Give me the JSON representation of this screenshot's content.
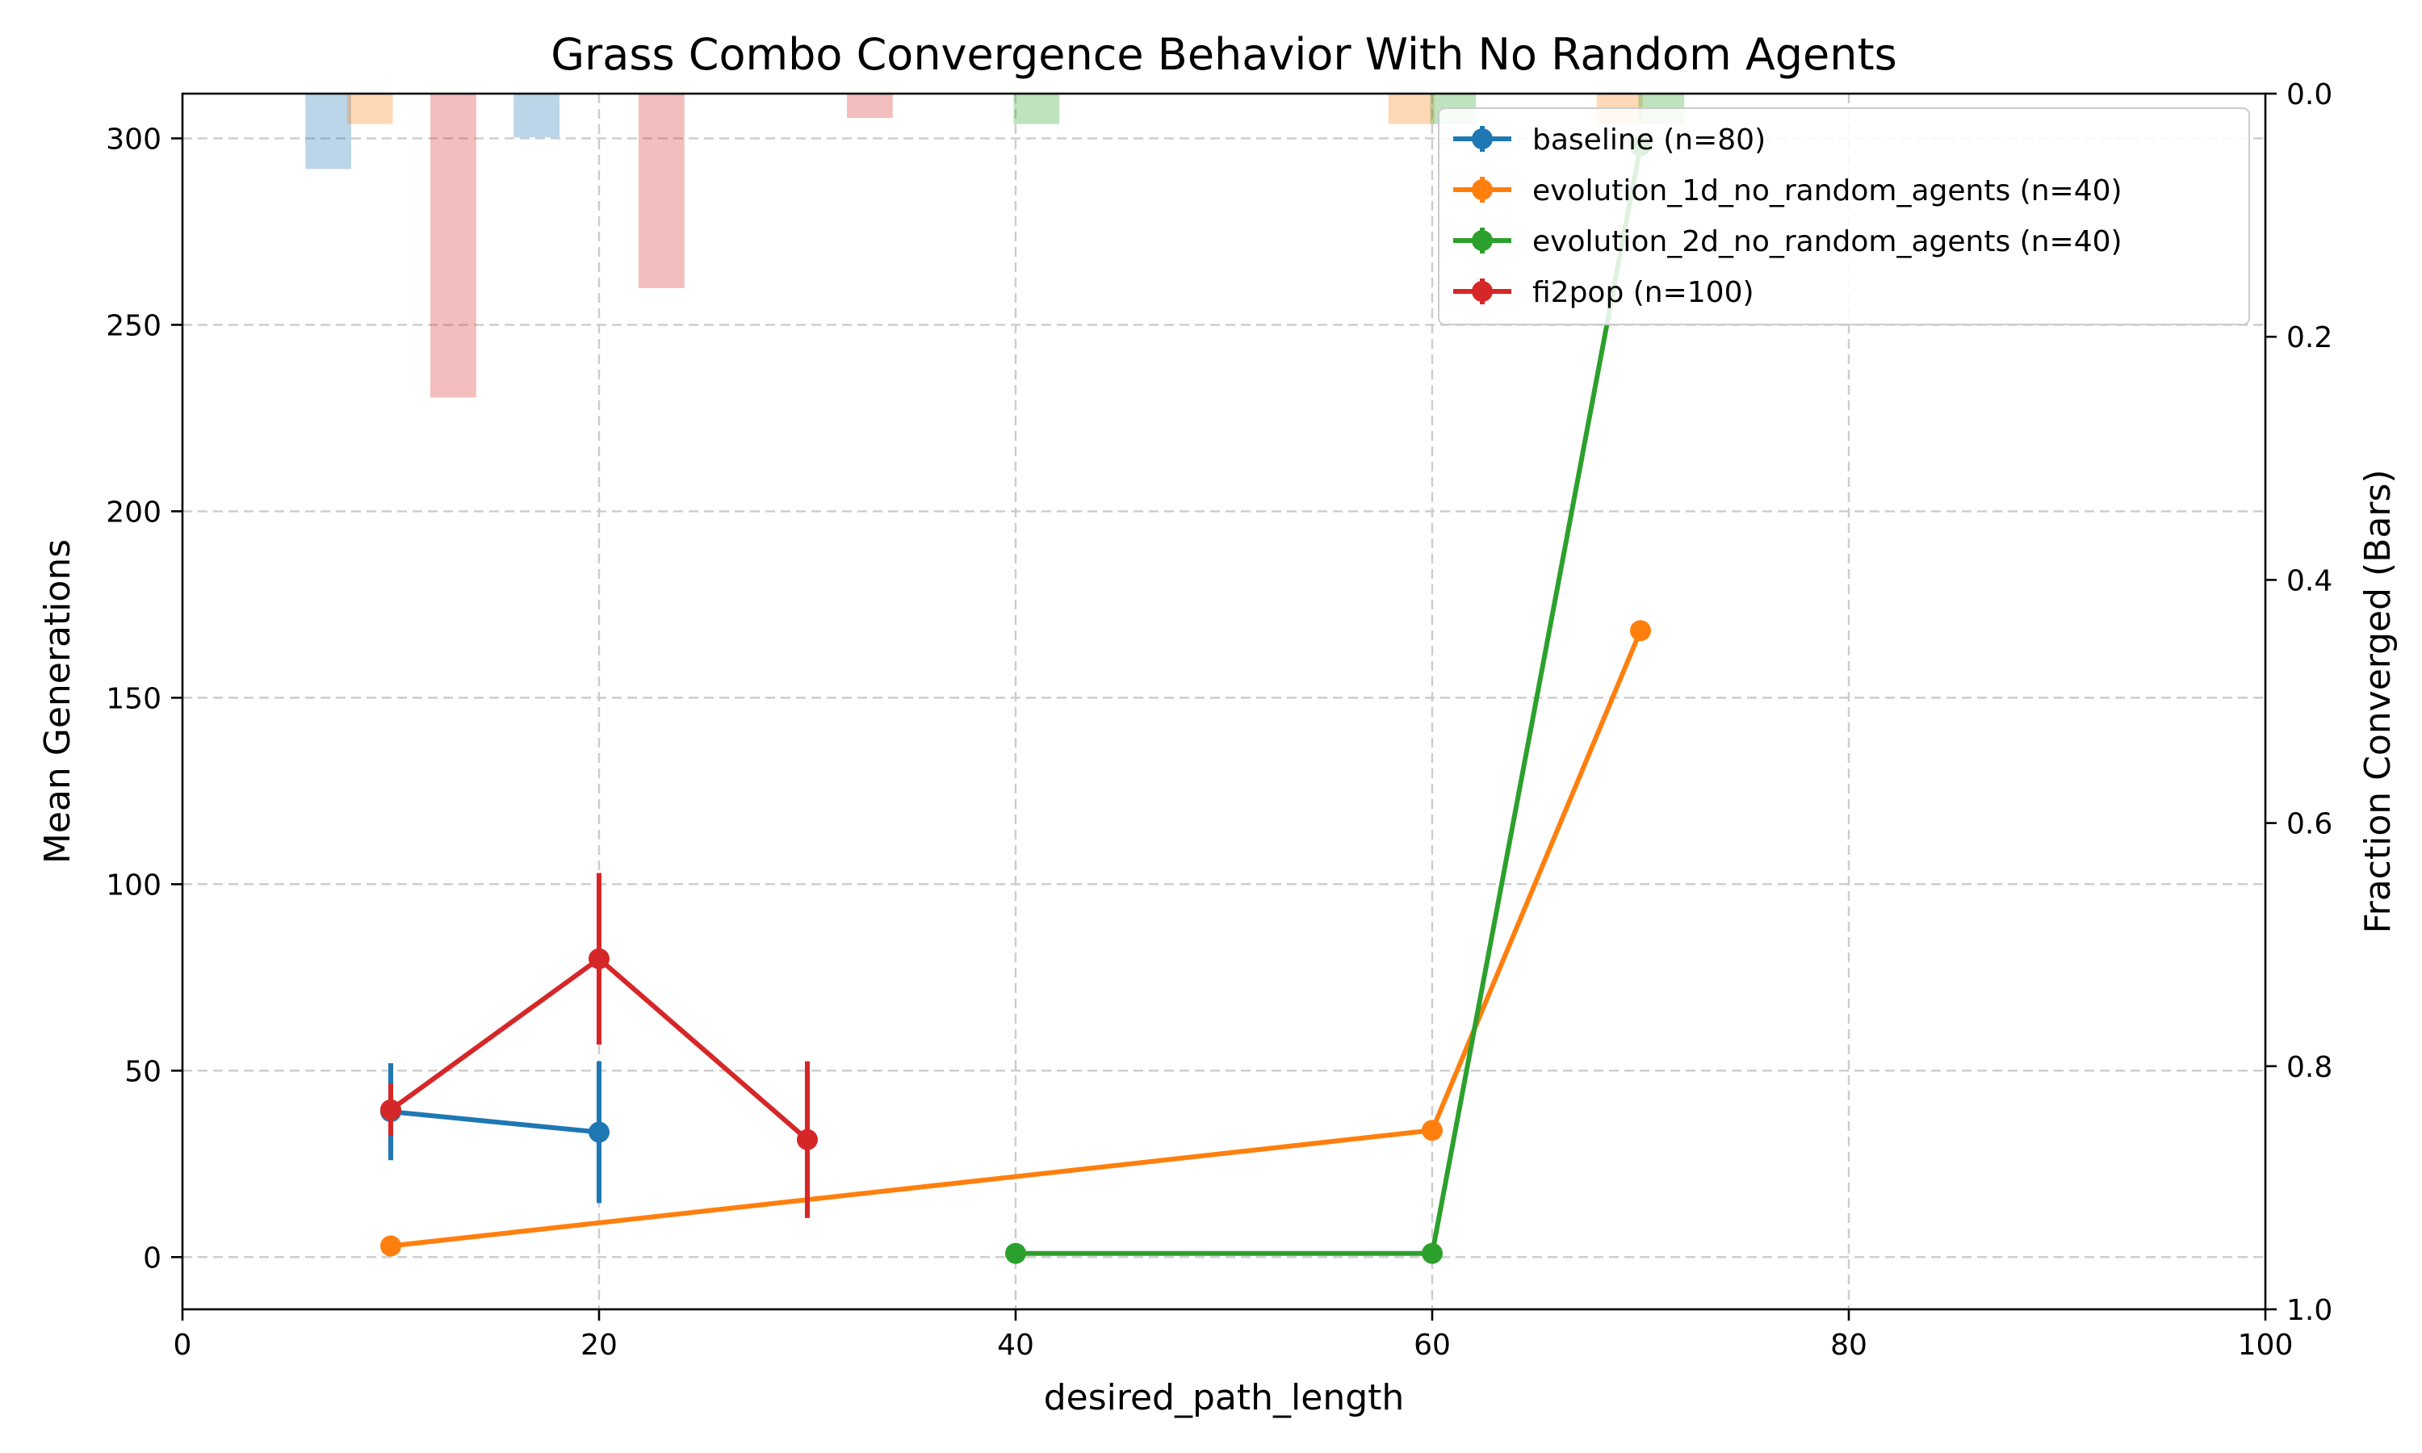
{
  "chart_data": {
    "type": "line",
    "title": "Grass Combo Convergence Behavior With No Random Agents",
    "xlabel": "desired_path_length",
    "ylabel": "Mean Generations",
    "ylabel_right": "Fraction Converged (Bars)",
    "xlim": [
      0,
      100
    ],
    "ylim": [
      -14,
      312
    ],
    "ylim_right_inverted": [
      1.0,
      0.0
    ],
    "x_ticks": [
      "0",
      "20",
      "40",
      "60",
      "80",
      "100"
    ],
    "x_tick_values": [
      0,
      20,
      40,
      60,
      80,
      100
    ],
    "y_ticks": [
      "0",
      "50",
      "100",
      "150",
      "200",
      "250",
      "300"
    ],
    "y_tick_values": [
      0,
      50,
      100,
      150,
      200,
      250,
      300
    ],
    "y_right_ticks": [
      "0.0",
      "0.2",
      "0.4",
      "0.6",
      "0.8",
      "1.0"
    ],
    "y_right_tick_values": [
      0,
      0.2,
      0.4,
      0.6,
      0.8,
      1.0
    ],
    "grid": true,
    "legend_position": "top-right",
    "series": [
      {
        "name": "baseline (n=80)",
        "color": "#1f77b4",
        "x": [
          10,
          20
        ],
        "y": [
          39,
          33.5
        ],
        "err": [
          13,
          19
        ],
        "bars": [
          {
            "x": 7,
            "fraction": 0.062
          },
          {
            "x": 17,
            "fraction": 0.036
          }
        ]
      },
      {
        "name": "evolution_1d_no_random_agents (n=40)",
        "color": "#ff7f0e",
        "x": [
          10,
          60,
          70
        ],
        "y": [
          3,
          34,
          168
        ],
        "err": [
          0,
          0,
          0
        ],
        "bars": [
          {
            "x": 9,
            "fraction": 0.025
          },
          {
            "x": 59,
            "fraction": 0.025
          },
          {
            "x": 69,
            "fraction": 0.025
          }
        ]
      },
      {
        "name": "evolution_2d_no_random_agents (n=40)",
        "color": "#2ca02c",
        "x": [
          40,
          60,
          70
        ],
        "y": [
          1,
          1,
          298
        ],
        "err": [
          0,
          0,
          0
        ],
        "bars": [
          {
            "x": 41,
            "fraction": 0.025
          },
          {
            "x": 61,
            "fraction": 0.025
          },
          {
            "x": 71,
            "fraction": 0.025
          }
        ]
      },
      {
        "name": "fi2pop (n=100)",
        "color": "#d62728",
        "x": [
          10,
          20,
          30
        ],
        "y": [
          39.5,
          80,
          31.5
        ],
        "err": [
          7,
          23,
          21
        ],
        "bars": [
          {
            "x": 13,
            "fraction": 0.25
          },
          {
            "x": 23,
            "fraction": 0.16
          },
          {
            "x": 33,
            "fraction": 0.02
          }
        ]
      }
    ]
  }
}
